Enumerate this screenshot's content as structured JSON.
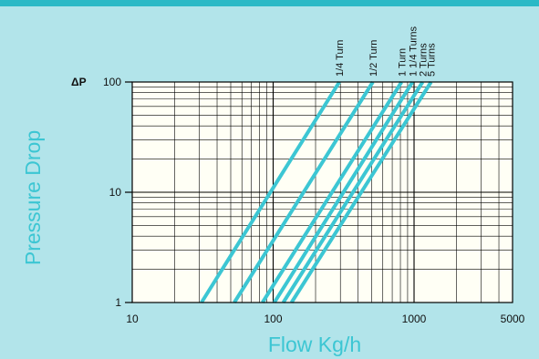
{
  "chart_data": {
    "type": "line",
    "x_scale": "log",
    "y_scale": "log",
    "xlabel": "Flow Kg/h",
    "ylabel": "Pressure Drop",
    "y_unit_label": "ΔP",
    "xlim": [
      10,
      5000
    ],
    "ylim": [
      1,
      100
    ],
    "x_ticks": [
      10,
      100,
      1000,
      5000
    ],
    "x_tick_labels": [
      "10",
      "100",
      "1000",
      "5000"
    ],
    "y_ticks": [
      1,
      10,
      100
    ],
    "y_tick_labels": [
      "1",
      "10",
      "100"
    ],
    "grid": true,
    "series_color": "#3cc6d3",
    "plot_background": "#fffff5",
    "series": [
      {
        "name": "1/4 Turn",
        "points": [
          [
            31,
            1
          ],
          [
            295,
            100
          ]
        ]
      },
      {
        "name": "1/2 Turn",
        "points": [
          [
            53,
            1
          ],
          [
            510,
            100
          ]
        ]
      },
      {
        "name": "1 Turn",
        "points": [
          [
            84,
            1
          ],
          [
            815,
            100
          ]
        ]
      },
      {
        "name": "1 1/4 Turns",
        "points": [
          [
            102,
            1
          ],
          [
            975,
            100
          ]
        ]
      },
      {
        "name": "2 Turns",
        "points": [
          [
            118,
            1
          ],
          [
            1150,
            100
          ]
        ]
      },
      {
        "name": "5 Turns",
        "points": [
          [
            135,
            1
          ],
          [
            1320,
            100
          ]
        ]
      }
    ]
  }
}
